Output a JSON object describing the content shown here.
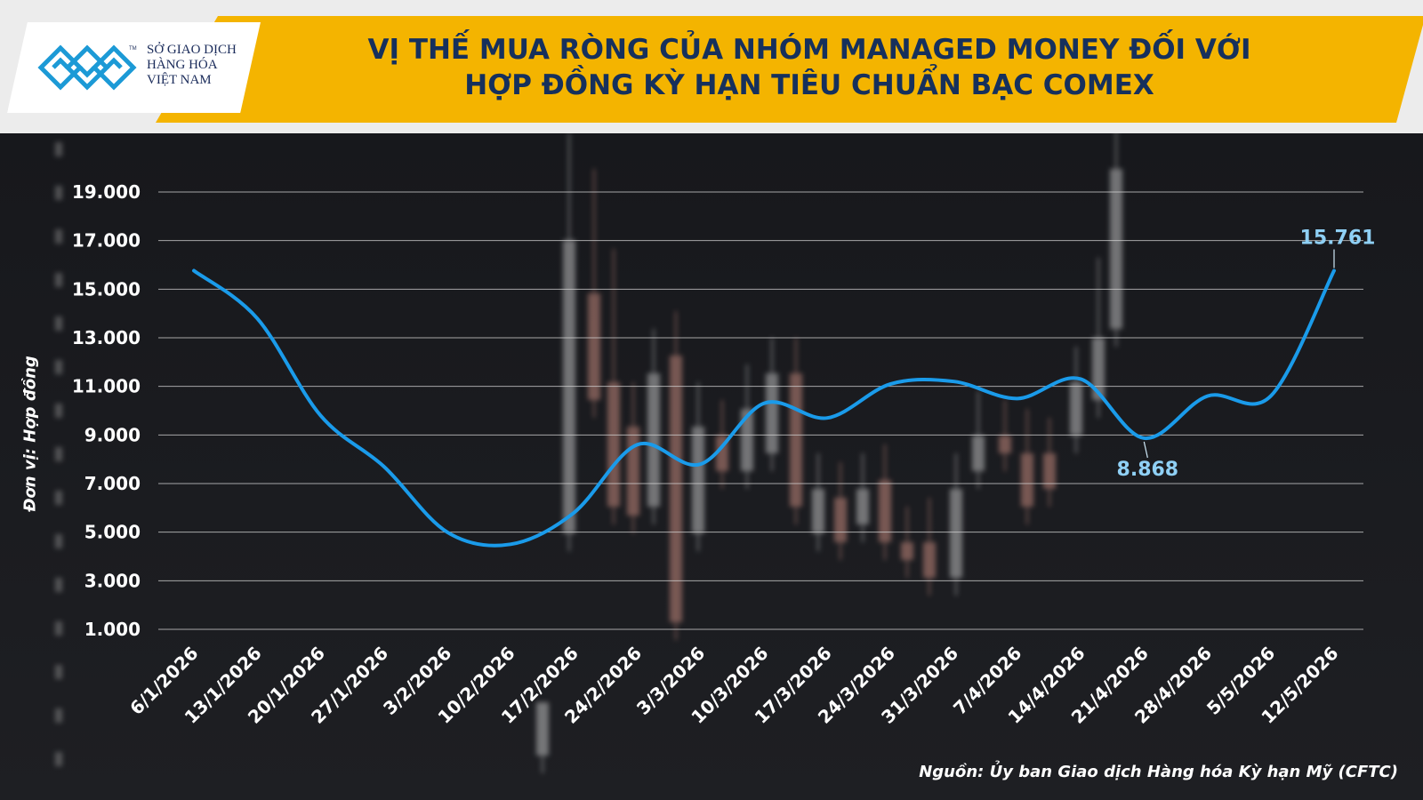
{
  "header": {
    "title_line1": "VỊ THẾ MUA RÒNG CỦA NHÓM MANAGED MONEY ĐỐI VỚI",
    "title_line2": "HỢP ĐỒNG KỲ HẠN TIÊU CHUẨN BẠC COMEX",
    "logo_line1": "SỞ GIAO DỊCH",
    "logo_line2": "HÀNG HÓA",
    "logo_line3": "VIỆT NAM",
    "logo_tm": "TM",
    "band_color": "#f4b400",
    "title_color": "#16305c"
  },
  "footer": {
    "source": "Nguồn: Ủy ban Giao dịch Hàng hóa Kỳ hạn Mỹ (CFTC)"
  },
  "chart_data": {
    "type": "line",
    "title": "VỊ THẾ MUA RÒNG CỦA NHÓM MANAGED MONEY ĐỐI VỚI HỢP ĐỒNG KỲ HẠN TIÊU CHUẨN BẠC COMEX",
    "ylabel": "Đơn vị: Hợp đồng",
    "xlabel": "",
    "x": [
      "6/1/2026",
      "13/1/2026",
      "20/1/2026",
      "27/1/2026",
      "3/2/2026",
      "10/2/2026",
      "17/2/2026",
      "24/2/2026",
      "3/3/2026",
      "10/3/2026",
      "17/3/2026",
      "24/3/2026",
      "31/3/2026",
      "7/4/2026",
      "14/4/2026",
      "21/4/2026",
      "28/4/2026",
      "5/5/2026",
      "12/5/2026"
    ],
    "series": [
      {
        "values": [
          15761,
          13800,
          9800,
          7700,
          5000,
          4500,
          5800,
          8600,
          7800,
          10300,
          9700,
          11100,
          11200,
          10500,
          11300,
          8868,
          10600,
          10600,
          15761
        ],
        "color": "#1a9bea"
      }
    ],
    "yticks": [
      1000,
      3000,
      5000,
      7000,
      9000,
      11000,
      13000,
      15000,
      17000,
      19000
    ],
    "ytick_labels": [
      "1.000",
      "3.000",
      "5.000",
      "7.000",
      "9.000",
      "11.000",
      "13.000",
      "15.000",
      "17.000",
      "19.000"
    ],
    "ylim": [
      1000,
      19000
    ],
    "grid": true,
    "annotations": [
      {
        "index": 18,
        "text": "15.761"
      },
      {
        "index": 15,
        "text": "8.868"
      }
    ],
    "annotation_color": "#8fd0f5"
  }
}
